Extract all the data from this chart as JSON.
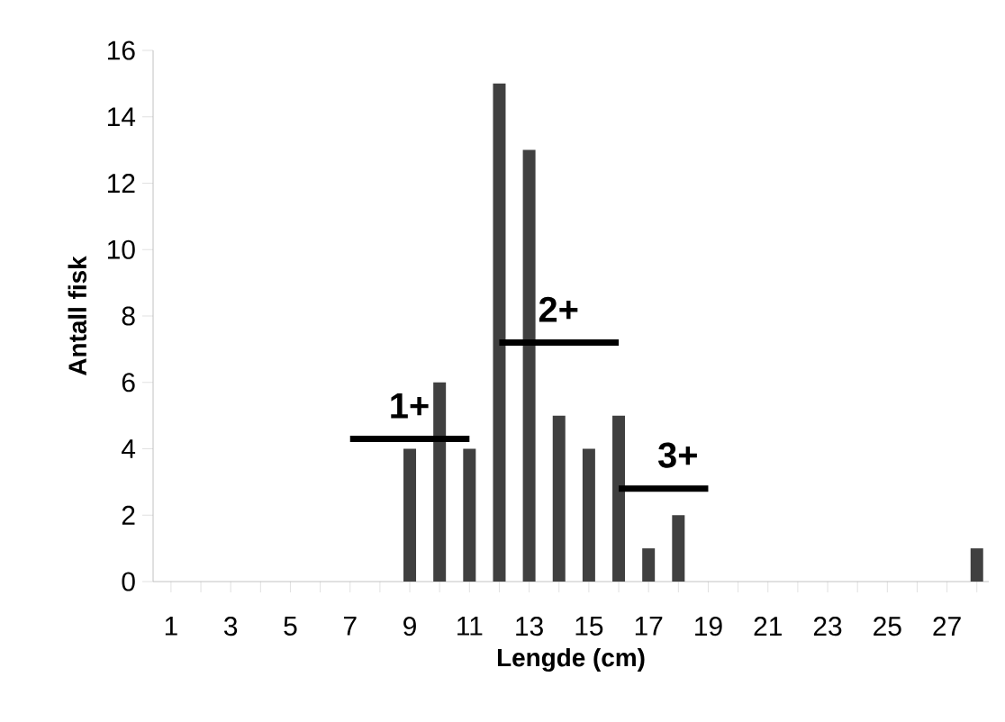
{
  "chart_data": {
    "type": "bar",
    "xlabel": "Lengde (cm)",
    "ylabel": "Antall fisk",
    "categories": [
      "1",
      null,
      "3",
      null,
      "5",
      null,
      "7",
      null,
      "9",
      null,
      "11",
      null,
      "13",
      null,
      "15",
      null,
      "17",
      null,
      "19",
      null,
      "21",
      null,
      "23",
      null,
      "25",
      null,
      "27",
      null
    ],
    "series": [
      {
        "color": "#404040",
        "values": [
          0,
          0,
          0,
          0,
          0,
          0,
          0,
          0,
          4,
          6,
          4,
          15,
          13,
          5,
          4,
          5,
          1,
          2,
          0,
          0,
          0,
          0,
          0,
          0,
          0,
          0,
          0,
          1
        ]
      },
      {
        "name": "1+",
        "type": "line",
        "color": "#000000",
        "values": [
          null,
          null,
          null,
          null,
          null,
          null,
          4.3,
          4.3,
          4.3,
          4.3,
          4.3,
          null,
          null,
          null,
          null,
          null,
          null,
          null,
          null,
          null,
          null,
          null,
          null,
          null,
          null,
          null,
          null,
          null
        ]
      },
      {
        "name": "2+",
        "type": "line",
        "color": "#000000",
        "values": [
          null,
          null,
          null,
          null,
          null,
          null,
          null,
          null,
          null,
          null,
          null,
          7.2,
          7.2,
          7.2,
          7.2,
          7.2,
          null,
          null,
          null,
          null,
          null,
          null,
          null,
          null,
          null,
          null,
          null,
          null
        ]
      },
      {
        "name": "3+",
        "type": "line",
        "color": "#000000",
        "values": [
          null,
          null,
          null,
          null,
          null,
          null,
          null,
          null,
          null,
          null,
          null,
          null,
          null,
          null,
          null,
          2.8,
          2.8,
          2.8,
          2.8,
          null,
          null,
          null,
          null,
          null,
          null,
          null,
          null,
          null
        ]
      }
    ],
    "ylim": [
      0,
      16
    ],
    "yticks": [
      0,
      2,
      4,
      6,
      8,
      10,
      12,
      14,
      16
    ]
  }
}
